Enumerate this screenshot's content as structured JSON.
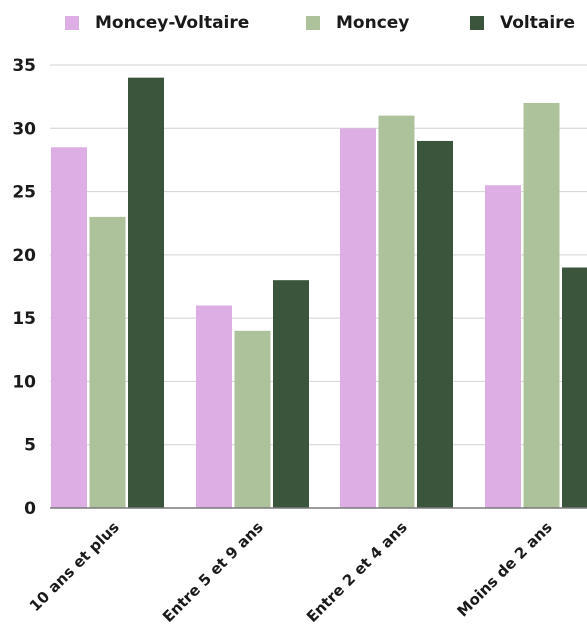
{
  "chart_data": {
    "type": "bar",
    "categories": [
      "10 ans et plus",
      "Entre 5 et 9 ans",
      "Entre 2 et 4 ans",
      "Moins de 2 ans"
    ],
    "series": [
      {
        "name": "Moncey-Voltaire",
        "color": "#dcaee3",
        "values": [
          28.5,
          16,
          30,
          25.5
        ]
      },
      {
        "name": "Moncey",
        "color": "#adc19b",
        "values": [
          23,
          14,
          31,
          32
        ]
      },
      {
        "name": "Voltaire",
        "color": "#3a553b",
        "values": [
          34,
          18,
          29,
          19
        ]
      }
    ],
    "yticks": [
      0,
      5,
      10,
      15,
      20,
      25,
      30,
      35
    ],
    "ylim": [
      0,
      35
    ],
    "grid": true,
    "legend_position": "top"
  }
}
